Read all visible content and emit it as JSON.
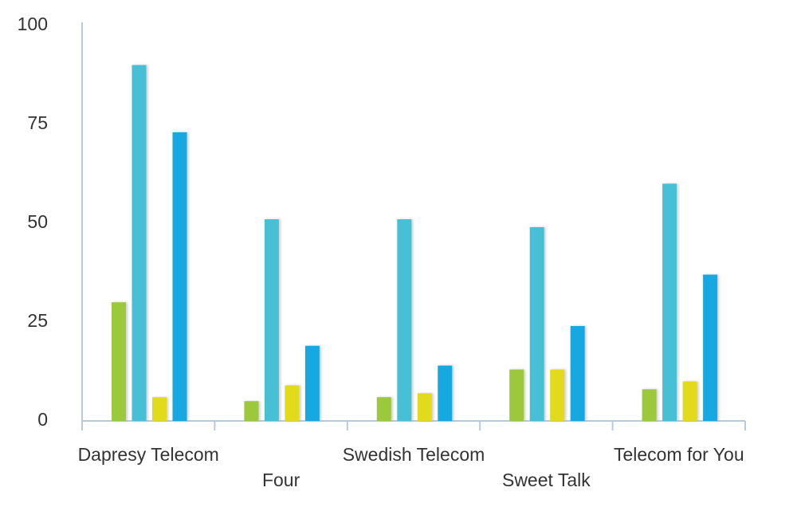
{
  "chart_data": {
    "type": "bar",
    "categories": [
      "Dapresy Telecom",
      "Four",
      "Swedish Telecom",
      "Sweet Talk",
      "Telecom for You"
    ],
    "series": [
      {
        "color": "#9cc83b",
        "values": [
          30,
          5,
          6,
          13,
          8
        ]
      },
      {
        "color": "#46c0d5",
        "values": [
          90,
          51,
          51,
          49,
          60
        ]
      },
      {
        "color": "#e2db1b",
        "values": [
          6,
          9,
          7,
          13,
          10
        ]
      },
      {
        "color": "#16a9e1",
        "values": [
          73,
          19,
          14,
          24,
          37
        ]
      }
    ],
    "ylim": [
      0,
      100
    ],
    "yticks": [
      0,
      25,
      50,
      75,
      100
    ],
    "grid": false
  }
}
